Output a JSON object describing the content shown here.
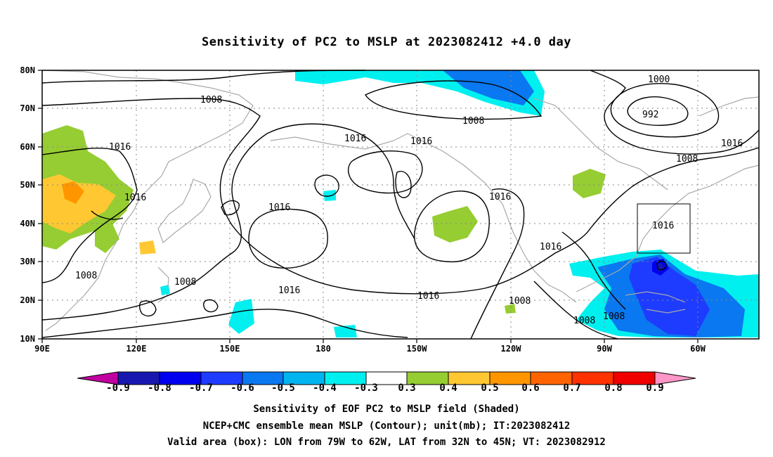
{
  "title": "Sensitivity of PC2 to MSLP at 2023082412 +4.0 day",
  "axes": {
    "lat_labels": [
      "80N",
      "70N",
      "60N",
      "50N",
      "40N",
      "30N",
      "20N",
      "10N"
    ],
    "lon_labels": [
      "90E",
      "120E",
      "150E",
      "180",
      "150W",
      "120W",
      "90W",
      "60W"
    ]
  },
  "contour_labels": [
    "1008",
    "1016",
    "1016",
    "1008",
    "1008",
    "1016",
    "1016",
    "1016",
    "1016",
    "1008",
    "1016",
    "1016",
    "1000",
    "992",
    "1008",
    "1016",
    "1016",
    "1016",
    "1008",
    "1008",
    "1008"
  ],
  "colorbar": {
    "labels": [
      "-0.9",
      "-0.8",
      "-0.7",
      "-0.6",
      "-0.5",
      "-0.4",
      "-0.3",
      "0.3",
      "0.4",
      "0.5",
      "0.6",
      "0.7",
      "0.8",
      "0.9"
    ],
    "colors": [
      "#c000a0",
      "#1818b0",
      "#0000f0",
      "#1e3cff",
      "#0a78f0",
      "#00b4f0",
      "#00f0f0",
      "#ffffff",
      "#96cd32",
      "#ffc832",
      "#ff9600",
      "#ff6400",
      "#ff3200",
      "#f00000",
      "#ff96c8"
    ]
  },
  "captions": [
    "Sensitivity of EOF PC2 to MSLP field (Shaded)",
    "NCEP+CMC ensemble mean MSLP (Contour); unit(mb); IT:2023082412",
    "Valid area (box): LON from 79W to 62W, LAT from 32N to 45N; VT: 2023082912"
  ]
}
